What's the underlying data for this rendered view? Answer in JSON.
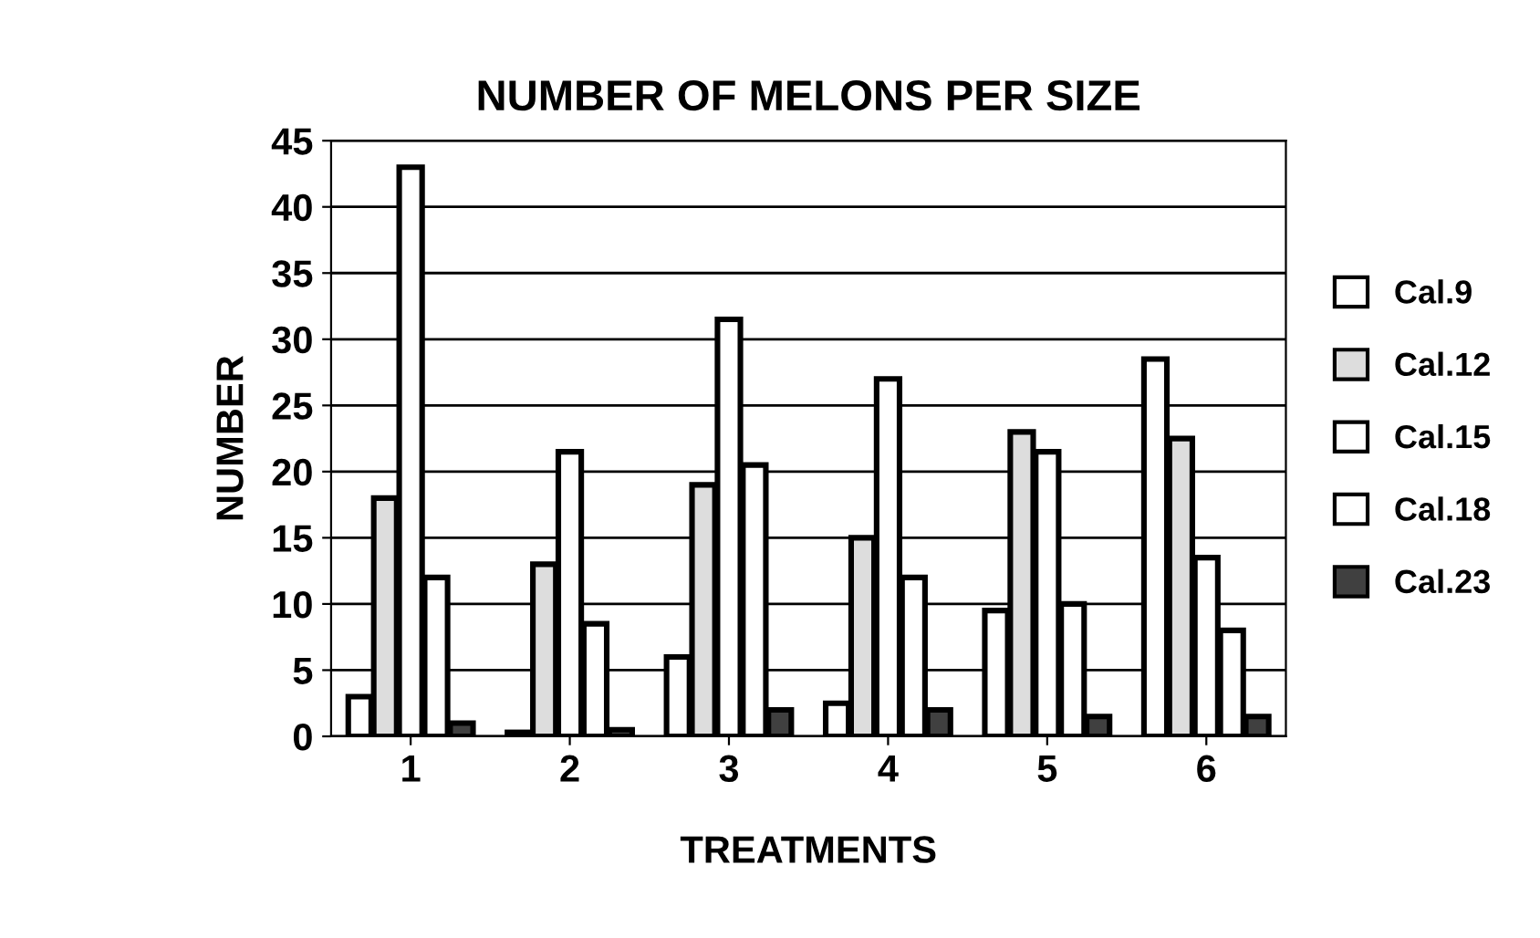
{
  "chart_data": {
    "type": "bar",
    "title": "NUMBER OF MELONS PER SIZE",
    "xlabel": "TREATMENTS",
    "ylabel": "NUMBER",
    "categories": [
      "1",
      "2",
      "3",
      "4",
      "5",
      "6"
    ],
    "series": [
      {
        "name": "Cal.9",
        "color": "#ffffff",
        "values": [
          3,
          0.3,
          6,
          2.5,
          9.5,
          28.5
        ]
      },
      {
        "name": "Cal.12",
        "color": "#dddddd",
        "values": [
          18,
          13,
          19,
          15,
          23,
          22.5
        ]
      },
      {
        "name": "Cal.15",
        "color": "#ffffff",
        "values": [
          43,
          21.5,
          31.5,
          27,
          21.5,
          13.5
        ]
      },
      {
        "name": "Cal.18",
        "color": "#ffffff",
        "values": [
          12,
          8.5,
          20.5,
          12,
          10,
          8
        ]
      },
      {
        "name": "Cal.23",
        "color": "#404040",
        "values": [
          1,
          0.5,
          2,
          2,
          1.5,
          1.5
        ]
      }
    ],
    "ylim": [
      0,
      45
    ],
    "yticks": [
      0,
      5,
      10,
      15,
      20,
      25,
      30,
      35,
      40,
      45
    ],
    "grid": "y",
    "legend": "right"
  }
}
